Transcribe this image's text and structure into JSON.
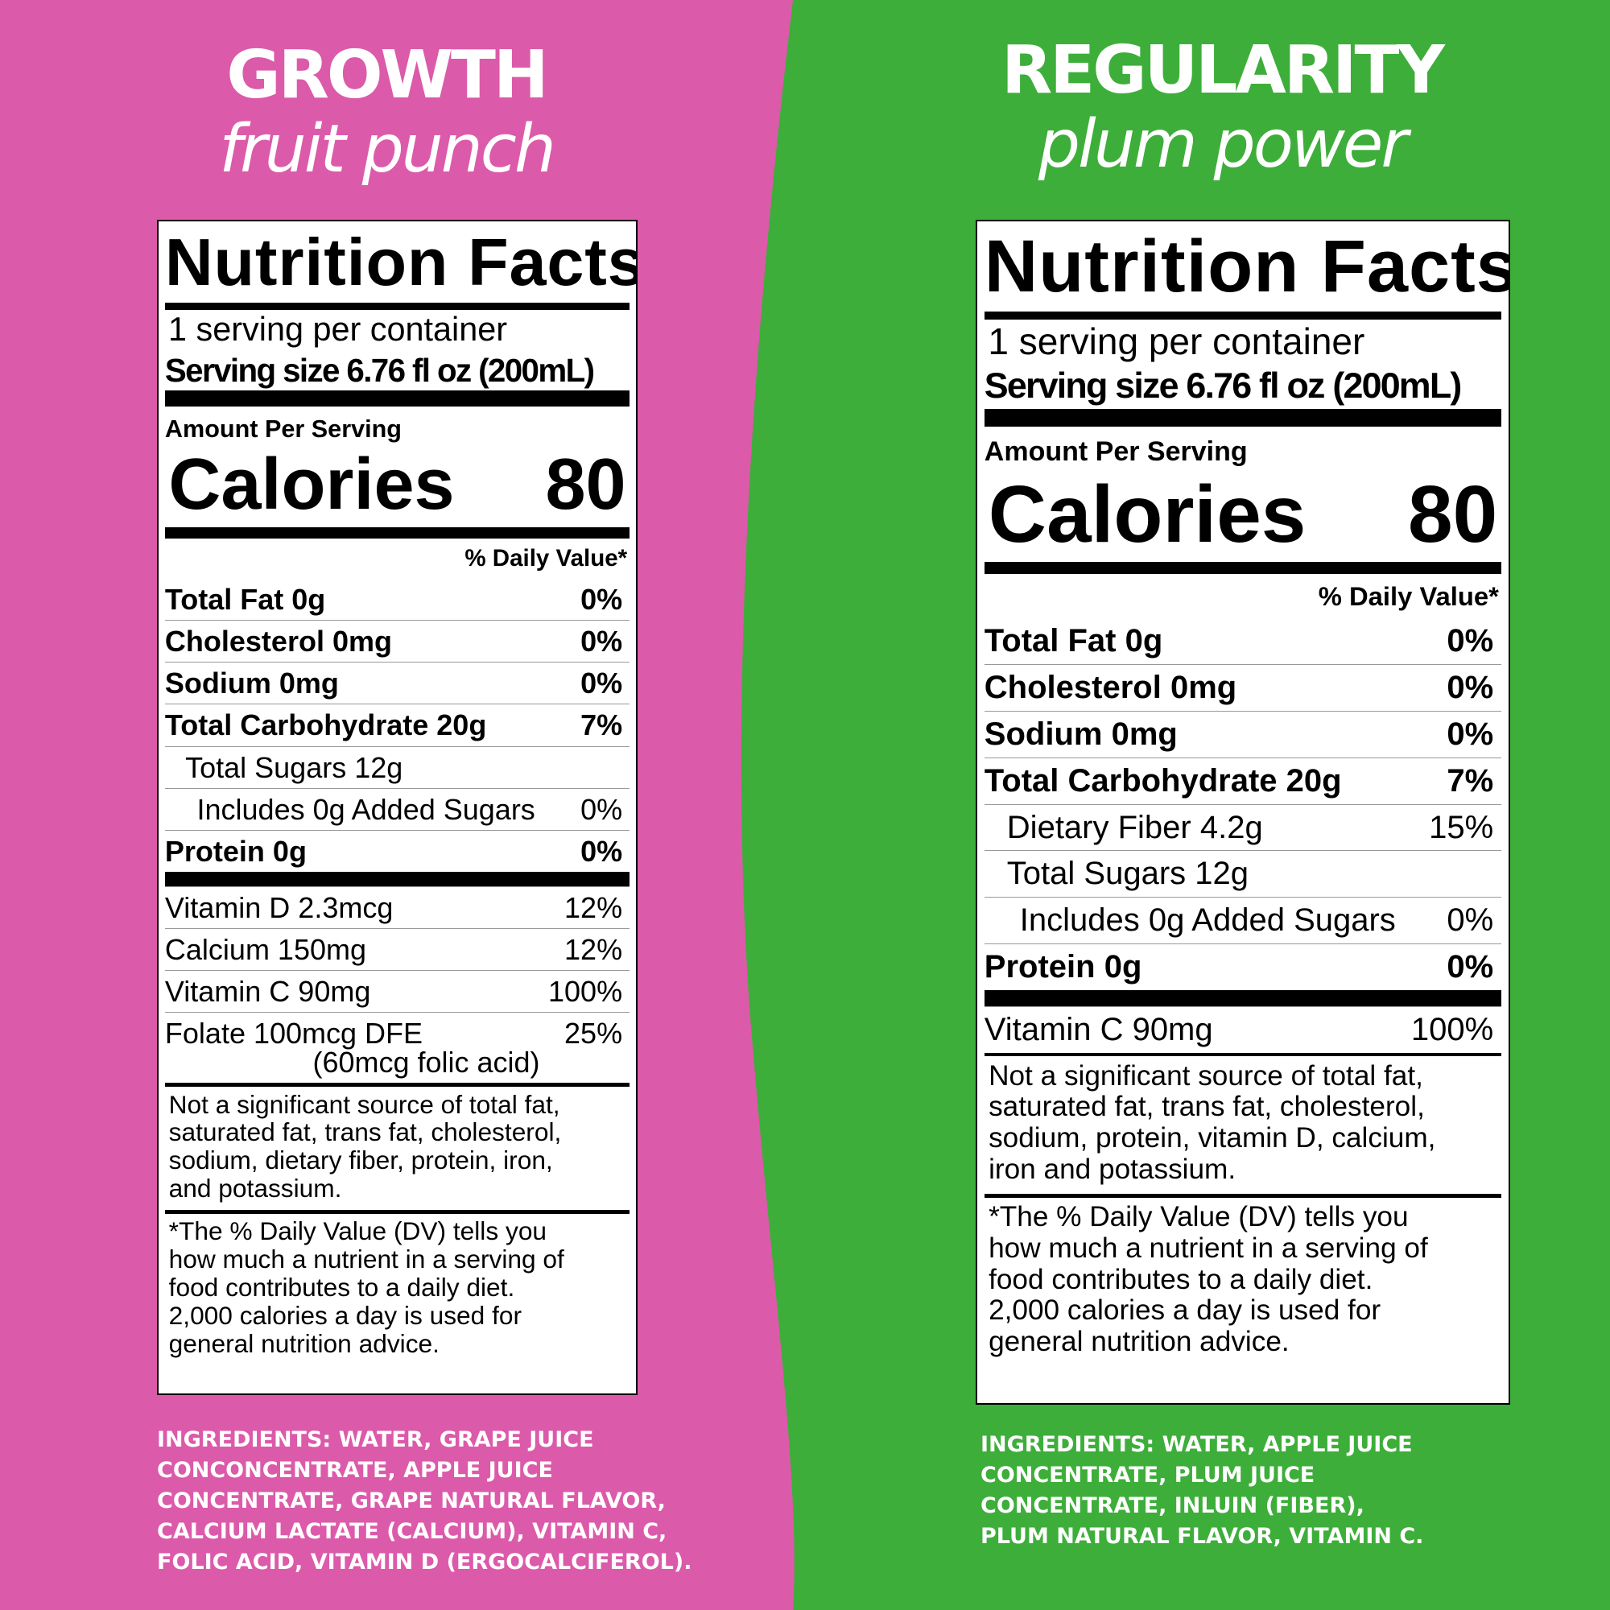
{
  "panels": [
    {
      "title": [
        "GROWTH",
        "fruit punch"
      ],
      "label": {
        "title": "Nutrition Facts",
        "servings": "1 serving per container",
        "serving_size": "Serving size  6.76 fl oz (200mL)",
        "amount_per_serving": "Amount Per Serving",
        "calories_label": "Calories",
        "calories": 80,
        "dv_header": "% Daily Value*",
        "nutrients": [
          {
            "text": "Total Fat 0g",
            "dv": "0%"
          },
          {
            "text": "Cholesterol 0mg",
            "dv": "0%"
          },
          {
            "text": "Sodium 0mg",
            "dv": "0%"
          },
          {
            "text": "Total Carbohydrate 20g",
            "dv": "7%",
            "sub": [
              {
                "text": "Total Sugars 12g",
                "sub": [
                  {
                    "text": "Includes 0g Added Sugars",
                    "dv": "0%"
                  }
                ]
              }
            ]
          },
          {
            "text": "Protein 0g",
            "dv": "0%"
          }
        ],
        "vitamins": [
          {
            "text": "Vitamin D 2.3mcg",
            "dv": "12%"
          },
          {
            "text": "Calcium 150mg",
            "dv": "12%"
          },
          {
            "text": "Vitamin C 90mg",
            "dv": "100%"
          },
          {
            "text": "Folate 100mcg DFE",
            "dv": "25%",
            "note": "(60mcg folic acid)"
          }
        ],
        "not_significant": [
          "Not a significant source of total fat,",
          "saturated fat, trans fat, cholesterol,",
          "sodium, dietary fiber, protein, iron,",
          "and potassium."
        ],
        "dv_note": [
          "*The % Daily Value (DV) tells you",
          "how much a nutrient in a serving of",
          "food contributes to a daily diet.",
          "2,000 calories a day is used for",
          "general nutrition advice."
        ]
      },
      "ingredients": [
        "INGREDIENTS: WATER, GRAPE JUICE",
        "CONCONCENTRATE, APPLE JUICE",
        "CONCENTRATE, GRAPE NATURAL FLAVOR,",
        "CALCIUM LACTATE (CALCIUM), VITAMIN C,",
        "FOLIC ACID, VITAMIN D (ERGOCALCIFEROL)."
      ]
    },
    {
      "title": [
        "REGULARITY",
        "plum power"
      ],
      "label": {
        "title": "Nutrition Facts",
        "servings": "1 serving per container",
        "serving_size": "Serving size  6.76 fl oz (200mL)",
        "amount_per_serving": "Amount Per Serving",
        "calories_label": "Calories",
        "calories": 80,
        "dv_header": "% Daily Value*",
        "nutrients": [
          {
            "text": "Total Fat 0g",
            "dv": "0%"
          },
          {
            "text": "Cholesterol 0mg",
            "dv": "0%"
          },
          {
            "text": "Sodium 0mg",
            "dv": "0%"
          },
          {
            "text": "Total Carbohydrate 20g",
            "dv": "7%",
            "sub": [
              {
                "text": "Dietary Fiber 4.2g",
                "dv": "15%"
              },
              {
                "text": "Total Sugars 12g",
                "sub": [
                  {
                    "text": "Includes 0g Added Sugars",
                    "dv": "0%"
                  }
                ]
              }
            ]
          },
          {
            "text": "Protein 0g",
            "dv": "0%"
          }
        ],
        "vitamins": [
          {
            "text": "Vitamin C 90mg",
            "dv": "100%"
          }
        ],
        "not_significant": [
          "Not a significant source of total fat,",
          "saturated fat, trans fat, cholesterol,",
          "sodium, protein, vitamin D, calcium,",
          "iron and potassium."
        ],
        "dv_note": [
          "*The % Daily Value (DV) tells you",
          "how much a nutrient in a serving of",
          "food contributes to a daily diet.",
          "2,000 calories a day is used for",
          "general nutrition advice."
        ]
      },
      "ingredients": [
        "INGREDIENTS: WATER, APPLE JUICE",
        "CONCENTRATE, PLUM JUICE",
        "CONCENTRATE, INLUIN (FIBER),",
        "PLUM NATURAL FLAVOR, VITAMIN C."
      ]
    }
  ]
}
